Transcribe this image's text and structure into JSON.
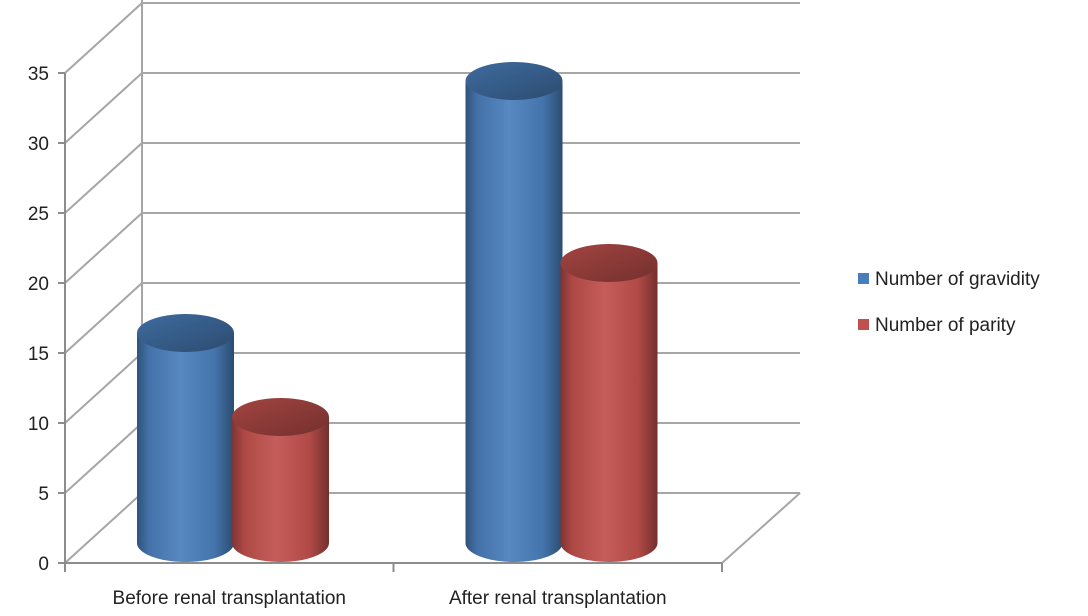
{
  "chart_data": {
    "type": "bar",
    "style": "3d-cylinder",
    "title": "",
    "xlabel": "",
    "ylabel": "",
    "categories": [
      "Before renal transplantation",
      "After renal transplantation"
    ],
    "series": [
      {
        "name": "Number of gravidity",
        "values": [
          15,
          33
        ],
        "color": "#4a7ebb"
      },
      {
        "name": "Number of parity",
        "values": [
          9,
          20
        ],
        "color": "#c0504d"
      }
    ],
    "ylim": [
      0,
      35
    ],
    "yticks": [
      0,
      5,
      10,
      15,
      20,
      25,
      30,
      35
    ],
    "grid": true,
    "legend_position": "right"
  }
}
